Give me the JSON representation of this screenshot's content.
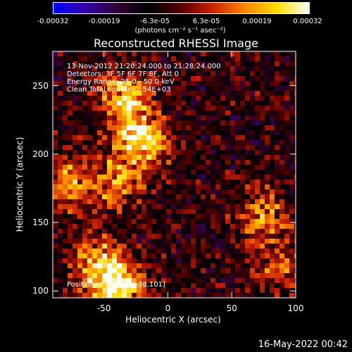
{
  "colorbar": {
    "ticks": [
      "-0.00032",
      "-0.00019",
      "-6.3e-05",
      "6.3e-05",
      "0.00019",
      "0.00032"
    ],
    "units": "(photons cm⁻² s⁻¹ asec⁻²)",
    "colors": [
      "#0000ff",
      "#3300aa",
      "#330033",
      "#000000",
      "#550000",
      "#cc2200",
      "#ff8800",
      "#ffdd00",
      "#ffffff"
    ]
  },
  "chart_data": {
    "type": "heatmap",
    "title": "Reconstructed RHESSI Image",
    "xlabel": "Heliocentric X (arcsec)",
    "ylabel": "Heliocentric Y (arcsec)",
    "xlim": [
      -90,
      100
    ],
    "ylim": [
      95,
      275
    ],
    "x_ticks": [
      -50,
      0,
      50,
      100
    ],
    "y_ticks": [
      100,
      150,
      200,
      250
    ],
    "colorbar_range": [
      -0.00032,
      0.00032
    ],
    "annotations": [
      "13-Nov-2012 21:20:24.000 to 21:28:24.000",
      "Detectors: 3F 5F 6F 7F 8F, Att 0",
      "Energy Range: 25.0 - 50.0 keV",
      "Clean     Total counts: 7.54E+03"
    ],
    "peak_label": "Position of Peak = [-38,101]",
    "emission_regions": [
      {
        "x": -35,
        "y": 240,
        "value": 0.00028
      },
      {
        "x": -20,
        "y": 210,
        "value": 0.00032
      },
      {
        "x": -75,
        "y": 180,
        "value": 0.00022
      },
      {
        "x": -40,
        "y": 180,
        "value": 0.0002
      },
      {
        "x": -55,
        "y": 120,
        "value": 0.00024
      },
      {
        "x": -38,
        "y": 101,
        "value": 0.00032
      },
      {
        "x": 75,
        "y": 157,
        "value": 0.0002
      },
      {
        "x": 85,
        "y": 120,
        "value": 0.00016
      }
    ]
  },
  "timestamp": "16-May-2022 00:42"
}
